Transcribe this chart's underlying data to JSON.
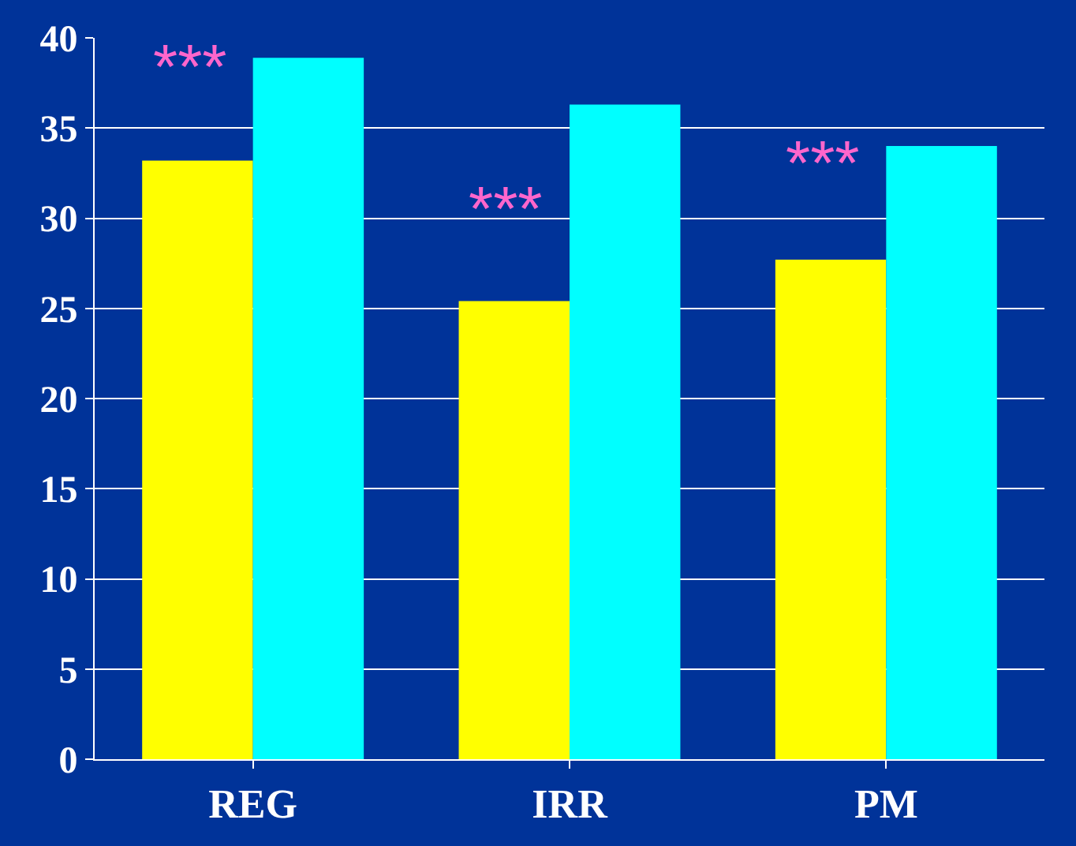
{
  "chart_data": {
    "type": "bar",
    "categories": [
      "REG",
      "IRR",
      "PM"
    ],
    "series": [
      {
        "color": "#ffff00",
        "values": [
          33.2,
          25.4,
          27.7
        ]
      },
      {
        "color": "#00ffff",
        "values": [
          38.9,
          36.3,
          34.0
        ]
      }
    ],
    "ylim": [
      0,
      40
    ],
    "yticks": [
      0,
      5,
      10,
      15,
      20,
      25,
      30,
      35,
      40
    ],
    "grid": "y",
    "annotations": [
      {
        "text": "***",
        "x": "REG",
        "y": 38.3
      },
      {
        "text": "***",
        "x": "IRR",
        "y": 30.5
      },
      {
        "text": "***",
        "x": "PM",
        "y": 33.0
      }
    ]
  }
}
